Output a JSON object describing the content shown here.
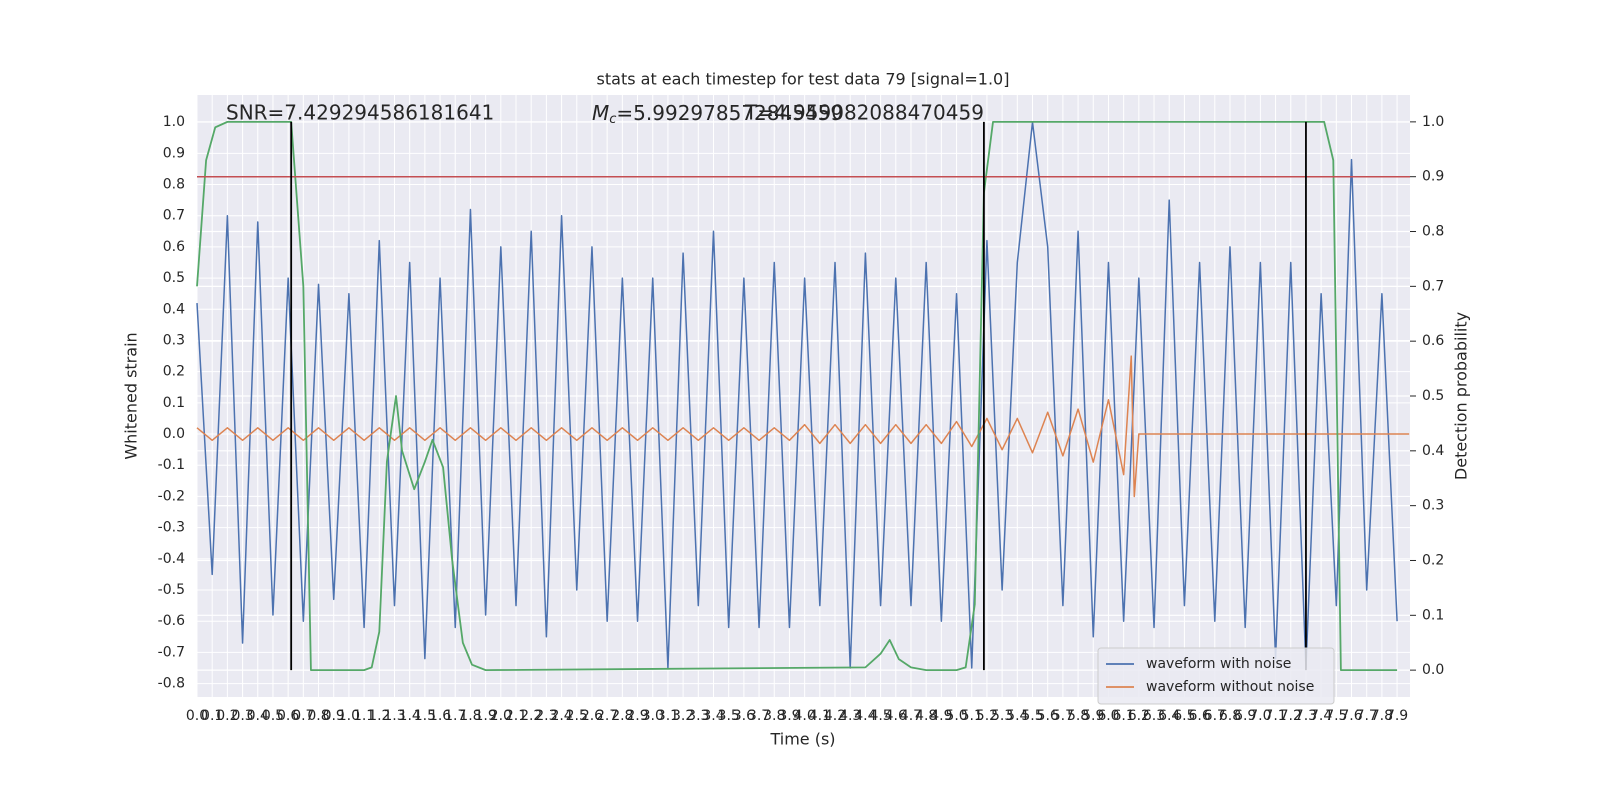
{
  "chart_data": {
    "type": "line",
    "title": "stats at each timestep for test data 79 [signal=1.0]",
    "xlabel": "Time (s)",
    "ylabel": "Whitened strain",
    "y2label": "Detection probability",
    "annotations": {
      "snr": "SNR=7.429294586181641",
      "mc_symbol": "M",
      "mc_sub": "c",
      "mc_value": "=5.992978572845459",
      "t": "T=4.959082088470459"
    },
    "xlim": [
      0,
      7.985
    ],
    "ylim": [
      -0.843,
      1.087
    ],
    "y2lim": [
      -0.049,
      1.049
    ],
    "grid": true,
    "background": "#eaeaf2",
    "legend": "lower right",
    "xticks": [
      {
        "value": 0,
        "label": "0.0"
      },
      0.1,
      0.2,
      0.3,
      0.4,
      0.5,
      0.6,
      0.7,
      0.8,
      0.9,
      {
        "value": 1,
        "label": "1.0"
      },
      1.1,
      1.2,
      1.3,
      1.4,
      1.5,
      1.6,
      1.7,
      1.8,
      1.9,
      {
        "value": 2,
        "label": "2.0"
      },
      2.1,
      2.2,
      2.3,
      2.4,
      2.5,
      2.6,
      2.7,
      2.8,
      2.9,
      {
        "value": 3,
        "label": "3.0"
      },
      3.1,
      3.2,
      3.3,
      3.4,
      3.5,
      3.6,
      3.7,
      3.8,
      3.9,
      {
        "value": 4,
        "label": "4.0"
      },
      4.1,
      4.2,
      4.3,
      4.4,
      4.5,
      4.6,
      4.7,
      4.8,
      4.9,
      {
        "value": 5,
        "label": "5.0"
      },
      5.1,
      5.2,
      5.3,
      5.4,
      5.5,
      5.6,
      5.7,
      5.8,
      5.9,
      {
        "value": 6,
        "label": "6.0"
      },
      6.1,
      6.2,
      6.3,
      6.4,
      6.5,
      6.6,
      6.7,
      6.8,
      6.9,
      {
        "value": 7,
        "label": "7.0"
      },
      7.1,
      7.2,
      7.3,
      7.4,
      7.5,
      7.6,
      7.7,
      7.8,
      7.9
    ],
    "yticks": [
      -0.8,
      -0.7,
      -0.6,
      -0.5,
      -0.4,
      -0.3,
      -0.2,
      -0.1,
      {
        "value": 0,
        "label": "0.0"
      },
      0.1,
      0.2,
      0.3,
      0.4,
      0.5,
      0.6,
      0.7,
      0.8,
      0.9,
      {
        "value": 1,
        "label": "1.0"
      }
    ],
    "y2ticks": [
      {
        "value": 0,
        "label": "0.0"
      },
      0.1,
      0.2,
      0.3,
      0.4,
      0.5,
      0.6,
      0.7,
      0.8,
      0.9,
      {
        "value": 1,
        "label": "1.0"
      }
    ],
    "series": [
      {
        "name": "waveform with noise",
        "color": "#4c72b0",
        "axis": "y",
        "x": [
          0,
          0.1,
          0.2,
          0.3,
          0.4,
          0.5,
          0.6,
          0.7,
          0.8,
          0.9,
          1,
          1.1,
          1.2,
          1.3,
          1.4,
          1.5,
          1.6,
          1.7,
          1.8,
          1.9,
          2,
          2.1,
          2.2,
          2.3,
          2.4,
          2.5,
          2.6,
          2.7,
          2.8,
          2.9,
          3,
          3.1,
          3.2,
          3.3,
          3.4,
          3.5,
          3.6,
          3.7,
          3.8,
          3.9,
          4,
          4.1,
          4.2,
          4.3,
          4.4,
          4.5,
          4.6,
          4.7,
          4.8,
          4.9,
          5,
          5.1,
          5.2,
          5.3,
          5.4,
          5.5,
          5.6,
          5.7,
          5.8,
          5.9,
          6,
          6.1,
          6.2,
          6.3,
          6.4,
          6.5,
          6.6,
          6.7,
          6.8,
          6.9,
          7,
          7.1,
          7.2,
          7.3,
          7.4,
          7.5,
          7.6,
          7.7,
          7.8,
          7.9
        ],
        "values": [
          0.42,
          -0.45,
          0.7,
          -0.67,
          0.68,
          -0.58,
          0.5,
          -0.6,
          0.48,
          -0.53,
          0.45,
          -0.62,
          0.62,
          -0.55,
          0.55,
          -0.72,
          0.5,
          -0.62,
          0.72,
          -0.58,
          0.6,
          -0.55,
          0.65,
          -0.65,
          0.7,
          -0.5,
          0.6,
          -0.6,
          0.5,
          -0.6,
          0.5,
          -0.75,
          0.58,
          -0.55,
          0.65,
          -0.62,
          0.5,
          -0.62,
          0.55,
          -0.62,
          0.5,
          -0.55,
          0.55,
          -0.75,
          0.58,
          -0.55,
          0.5,
          -0.55,
          0.55,
          -0.6,
          0.45,
          -0.75,
          0.62,
          -0.5,
          0.55,
          1.0,
          0.6,
          -0.55,
          0.65,
          -0.65,
          0.55,
          -0.6,
          0.5,
          -0.62,
          0.75,
          -0.55,
          0.55,
          -0.6,
          0.6,
          -0.62,
          0.55,
          -0.72,
          0.55,
          -0.75,
          0.45,
          -0.55,
          0.88,
          -0.5,
          0.45,
          -0.6
        ]
      },
      {
        "name": "waveform without noise",
        "color": "#dd8452",
        "axis": "y",
        "x": [
          0,
          0.1,
          0.2,
          0.3,
          0.4,
          0.5,
          0.6,
          0.7,
          0.8,
          0.9,
          1,
          1.1,
          1.2,
          1.3,
          1.4,
          1.5,
          1.6,
          1.7,
          1.8,
          1.9,
          2,
          2.1,
          2.2,
          2.3,
          2.4,
          2.5,
          2.6,
          2.7,
          2.8,
          2.9,
          3,
          3.1,
          3.2,
          3.3,
          3.4,
          3.5,
          3.6,
          3.7,
          3.8,
          3.9,
          4,
          4.1,
          4.2,
          4.3,
          4.4,
          4.5,
          4.6,
          4.7,
          4.8,
          4.9,
          5,
          5.1,
          5.2,
          5.3,
          5.4,
          5.5,
          5.6,
          5.7,
          5.8,
          5.9,
          6,
          6.1,
          6.15,
          6.17,
          6.2,
          7.98
        ],
        "values": [
          0.02,
          -0.02,
          0.02,
          -0.02,
          0.02,
          -0.02,
          0.02,
          -0.02,
          0.02,
          -0.02,
          0.02,
          -0.02,
          0.02,
          -0.02,
          0.02,
          -0.02,
          0.02,
          -0.02,
          0.02,
          -0.02,
          0.02,
          -0.02,
          0.02,
          -0.02,
          0.02,
          -0.02,
          0.02,
          -0.02,
          0.02,
          -0.02,
          0.02,
          -0.02,
          0.02,
          -0.02,
          0.02,
          -0.02,
          0.02,
          -0.02,
          0.02,
          -0.02,
          0.03,
          -0.03,
          0.03,
          -0.03,
          0.03,
          -0.03,
          0.03,
          -0.03,
          0.03,
          -0.03,
          0.04,
          -0.04,
          0.05,
          -0.05,
          0.05,
          -0.06,
          0.07,
          -0.07,
          0.08,
          -0.09,
          0.11,
          -0.13,
          0.25,
          -0.2,
          0,
          0
        ]
      },
      {
        "color": "#55a868",
        "axis": "y2",
        "x": [
          0,
          0.06,
          0.12,
          0.2,
          0.62,
          0.7,
          0.75,
          0.8,
          1.1,
          1.15,
          1.2,
          1.25,
          1.31,
          1.35,
          1.43,
          1.5,
          1.55,
          1.62,
          1.68,
          1.75,
          1.81,
          1.9,
          4.4,
          4.5,
          4.56,
          4.62,
          4.7,
          4.8,
          5.0,
          5.06,
          5.12,
          5.18,
          5.24,
          7.42,
          7.48,
          7.53,
          7.6,
          7.9
        ],
        "values": [
          0.7,
          0.93,
          0.99,
          1.0,
          1.0,
          0.7,
          0.0,
          0.0,
          0.0,
          0.005,
          0.07,
          0.38,
          0.5,
          0.4,
          0.33,
          0.38,
          0.42,
          0.37,
          0.2,
          0.05,
          0.01,
          0.0,
          0.005,
          0.03,
          0.055,
          0.02,
          0.005,
          0.0,
          0.0,
          0.005,
          0.12,
          0.87,
          1.0,
          1.0,
          0.93,
          0.0,
          0.0,
          0.0
        ]
      }
    ],
    "hline": {
      "y": 0.9,
      "axis": "y2",
      "color": "#c44e52"
    },
    "vlines": {
      "x": [
        0.62,
        5.18,
        7.3
      ],
      "ymin": 0,
      "ymax": 1,
      "axis": "y2",
      "color": "#000000"
    }
  }
}
